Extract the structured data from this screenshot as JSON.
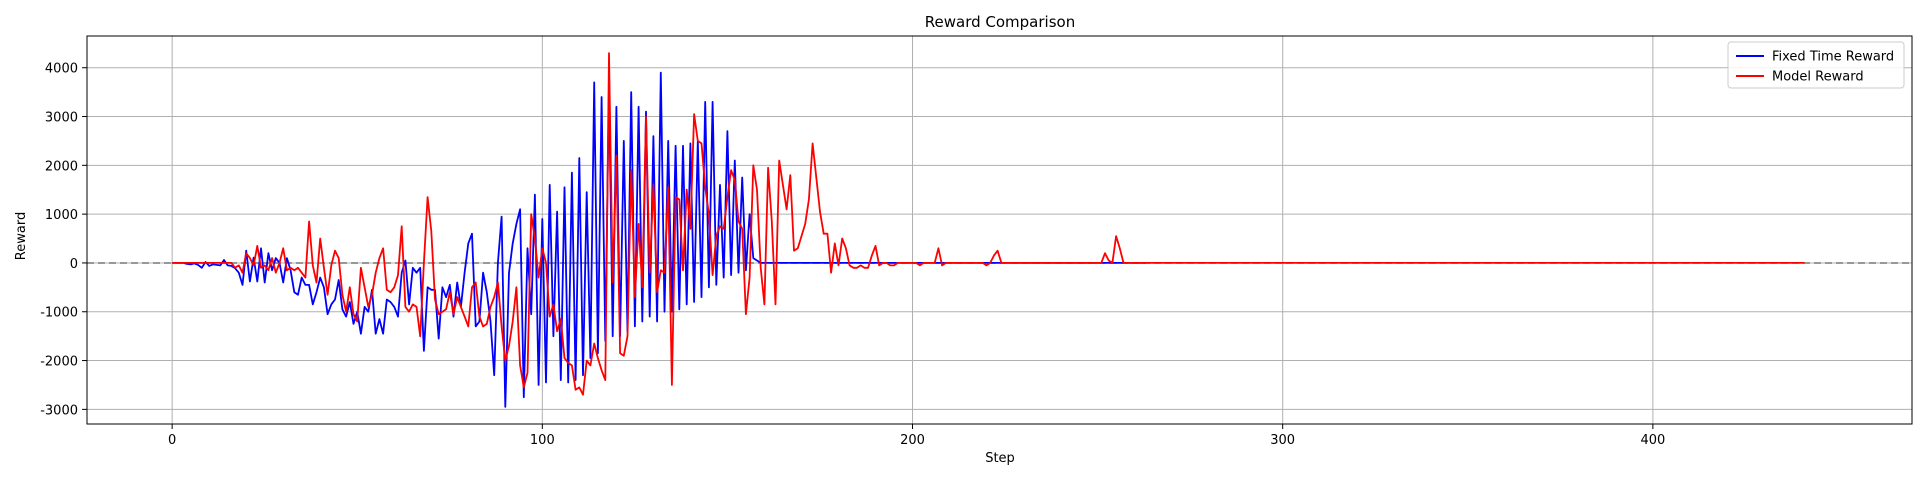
{
  "chart_data": {
    "type": "line",
    "title": "Reward Comparison",
    "xlabel": "Step",
    "ylabel": "Reward",
    "xlim": [
      -23,
      470
    ],
    "ylim": [
      -3300,
      4650
    ],
    "xticks": [
      0,
      100,
      200,
      300,
      400
    ],
    "yticks": [
      -3000,
      -2000,
      -1000,
      0,
      1000,
      2000,
      3000,
      4000
    ],
    "grid": true,
    "legend_position": "top-right",
    "reference_line": {
      "y": 0,
      "style": "dashed",
      "color": "#777777"
    },
    "series": [
      {
        "name": "Fixed Time Reward",
        "color": "#0000ff",
        "x_start": 0,
        "x_step": 1,
        "values": [
          0,
          0,
          0,
          0,
          -20,
          -30,
          -10,
          -40,
          -100,
          20,
          -60,
          -30,
          -40,
          -50,
          60,
          -50,
          -60,
          -110,
          -200,
          -450,
          250,
          -380,
          110,
          -380,
          300,
          -400,
          200,
          -150,
          100,
          0,
          -400,
          100,
          -150,
          -600,
          -650,
          -300,
          -450,
          -450,
          -850,
          -600,
          -300,
          -500,
          -1050,
          -850,
          -750,
          -350,
          -950,
          -1100,
          -800,
          -1250,
          -1000,
          -1450,
          -900,
          -1000,
          -550,
          -1450,
          -1150,
          -1450,
          -750,
          -800,
          -900,
          -1100,
          -200,
          50,
          -850,
          -100,
          -200,
          -100,
          -1800,
          -500,
          -550,
          -550,
          -1550,
          -500,
          -700,
          -450,
          -1100,
          -400,
          -900,
          -200,
          400,
          600,
          -1300,
          -1200,
          -200,
          -600,
          -1200,
          -2300,
          0,
          950,
          -2950,
          -200,
          400,
          800,
          1100,
          -2750,
          300,
          -1050,
          1400,
          -2500,
          900,
          -2450,
          1600,
          -1500,
          1050,
          -2400,
          1550,
          -2450,
          1850,
          -2400,
          2150,
          -2300,
          1450,
          -1950,
          3700,
          -1850,
          3400,
          -1600,
          3650,
          -1500,
          3200,
          -1500,
          2500,
          -1400,
          3500,
          -1300,
          3200,
          -1200,
          3100,
          -1100,
          2600,
          -1200,
          3900,
          -1000,
          2500,
          -1000,
          2400,
          -950,
          2400,
          -850,
          2450,
          -800,
          2500,
          -700,
          3300,
          -500,
          3300,
          -450,
          1600,
          -300,
          2700,
          -250,
          2100,
          -200,
          1750,
          -150,
          1000,
          100,
          50,
          0,
          0,
          0,
          0,
          0,
          0,
          0,
          0,
          0,
          0,
          0,
          0,
          0,
          0,
          0,
          0,
          0,
          0,
          0,
          0,
          0,
          0,
          0,
          0,
          0,
          0,
          0,
          0,
          0,
          0,
          0,
          0,
          0,
          0,
          0,
          0,
          0,
          0,
          0,
          0,
          0,
          0,
          0,
          0,
          0,
          0,
          0,
          0,
          0,
          0,
          0,
          0,
          0,
          0,
          0,
          0,
          0,
          0,
          0,
          0,
          0,
          0,
          0,
          0,
          0,
          0,
          0,
          0,
          0,
          0,
          0,
          0,
          0,
          0,
          0,
          0,
          0,
          0,
          0,
          0,
          0,
          0,
          0,
          0,
          0,
          0,
          0,
          0,
          0,
          0,
          0,
          0,
          0,
          0,
          0,
          0,
          0,
          0,
          0,
          0,
          0,
          0,
          0,
          0,
          0
        ]
      },
      {
        "name": "Model Reward",
        "color": "#ff0000",
        "x_start": 0,
        "x_step": 1,
        "values": [
          0,
          0,
          0,
          0,
          0,
          0,
          0,
          0,
          0,
          0,
          0,
          0,
          0,
          0,
          0,
          0,
          0,
          -100,
          -50,
          -200,
          200,
          100,
          -50,
          350,
          -100,
          -50,
          -150,
          100,
          -200,
          0,
          300,
          -150,
          -100,
          -150,
          -100,
          -200,
          -300,
          850,
          -50,
          -400,
          500,
          -100,
          -650,
          -50,
          250,
          100,
          -650,
          -1000,
          -500,
          -1050,
          -1200,
          -100,
          -500,
          -900,
          -650,
          -200,
          100,
          300,
          -550,
          -600,
          -500,
          -250,
          750,
          -900,
          -1000,
          -850,
          -900,
          -1500,
          0,
          1350,
          650,
          -750,
          -1050,
          -1000,
          -950,
          -600,
          -1050,
          -700,
          -900,
          -1100,
          -1300,
          -500,
          -400,
          -1100,
          -1300,
          -1250,
          -900,
          -700,
          -400,
          -1300,
          -2000,
          -1700,
          -1200,
          -500,
          -2100,
          -2550,
          -2250,
          1000,
          500,
          -300,
          300,
          0,
          -1100,
          -850,
          -1400,
          -1150,
          -1950,
          -2050,
          -2100,
          -2600,
          -2550,
          -2700,
          -2000,
          -2100,
          -1650,
          -1950,
          -2200,
          -2400,
          4300,
          -400,
          2200,
          -1850,
          -1900,
          -1500,
          1900,
          -700,
          800,
          -500,
          3000,
          -200,
          1600,
          -600,
          -150,
          -200,
          1550,
          -2500,
          1350,
          1300,
          -150,
          1500,
          700,
          3050,
          2500,
          2450,
          1550,
          1000,
          -250,
          550,
          750,
          700,
          1350,
          1900,
          1700,
          850,
          700,
          -1050,
          -300,
          2000,
          1500,
          -100,
          -850,
          1950,
          850,
          -850,
          2100,
          1600,
          1100,
          1800,
          250,
          300,
          550,
          800,
          1300,
          2450,
          1750,
          1050,
          600,
          600,
          -200,
          400,
          -50,
          500,
          300,
          -50,
          -100,
          -100,
          -50,
          -100,
          -100,
          150,
          350,
          -50,
          0,
          0,
          -50,
          -50,
          0,
          0,
          0,
          0,
          0,
          0,
          -50,
          0,
          0,
          0,
          0,
          300,
          -50,
          0,
          0,
          0,
          0,
          0,
          0,
          0,
          0,
          0,
          0,
          0,
          -50,
          0,
          150,
          250,
          0,
          0,
          0,
          0,
          0,
          0,
          0,
          0,
          0,
          0,
          0,
          0,
          0,
          0,
          0,
          0,
          0,
          0,
          0,
          0,
          0,
          0,
          0,
          0,
          0,
          0,
          0,
          0,
          200,
          50,
          0,
          550,
          300,
          0,
          0,
          0,
          0,
          0,
          0,
          0,
          0,
          0,
          0,
          0,
          0,
          0,
          0,
          0,
          0,
          0,
          0,
          0,
          0,
          0,
          0,
          0,
          0,
          0,
          0,
          0,
          0,
          0,
          0,
          0,
          0,
          0,
          0,
          0,
          0,
          0,
          0,
          0,
          0,
          0,
          0,
          0,
          0,
          0,
          0,
          0,
          0,
          0,
          0,
          0,
          0,
          0,
          0,
          0,
          0,
          0,
          0,
          0,
          0,
          0,
          0,
          0,
          0,
          0,
          0,
          0,
          0,
          0,
          0,
          0,
          0,
          0,
          0,
          0,
          0,
          0,
          0,
          0,
          0,
          0,
          0,
          0,
          0,
          0,
          0,
          0,
          0,
          0,
          0,
          0,
          0,
          0,
          0,
          0,
          0,
          0,
          0,
          0,
          0,
          0,
          0,
          0,
          0,
          0,
          0,
          0,
          0,
          0,
          0,
          0,
          0,
          0,
          0,
          0,
          0,
          0,
          0,
          0,
          0,
          0,
          0,
          0,
          0,
          0,
          0,
          0,
          0,
          0,
          0,
          0,
          0,
          0,
          0,
          0,
          0,
          0,
          0,
          0,
          0,
          0,
          0,
          0,
          0,
          0,
          0,
          0,
          0,
          0,
          0,
          0,
          0,
          0,
          0,
          0,
          0,
          0,
          0,
          0,
          0,
          0,
          0,
          0,
          0,
          0,
          0,
          0,
          0,
          0,
          0,
          0,
          0,
          0,
          0,
          0,
          0,
          0,
          0,
          0,
          0,
          0,
          0,
          0,
          0,
          0
        ]
      }
    ]
  }
}
